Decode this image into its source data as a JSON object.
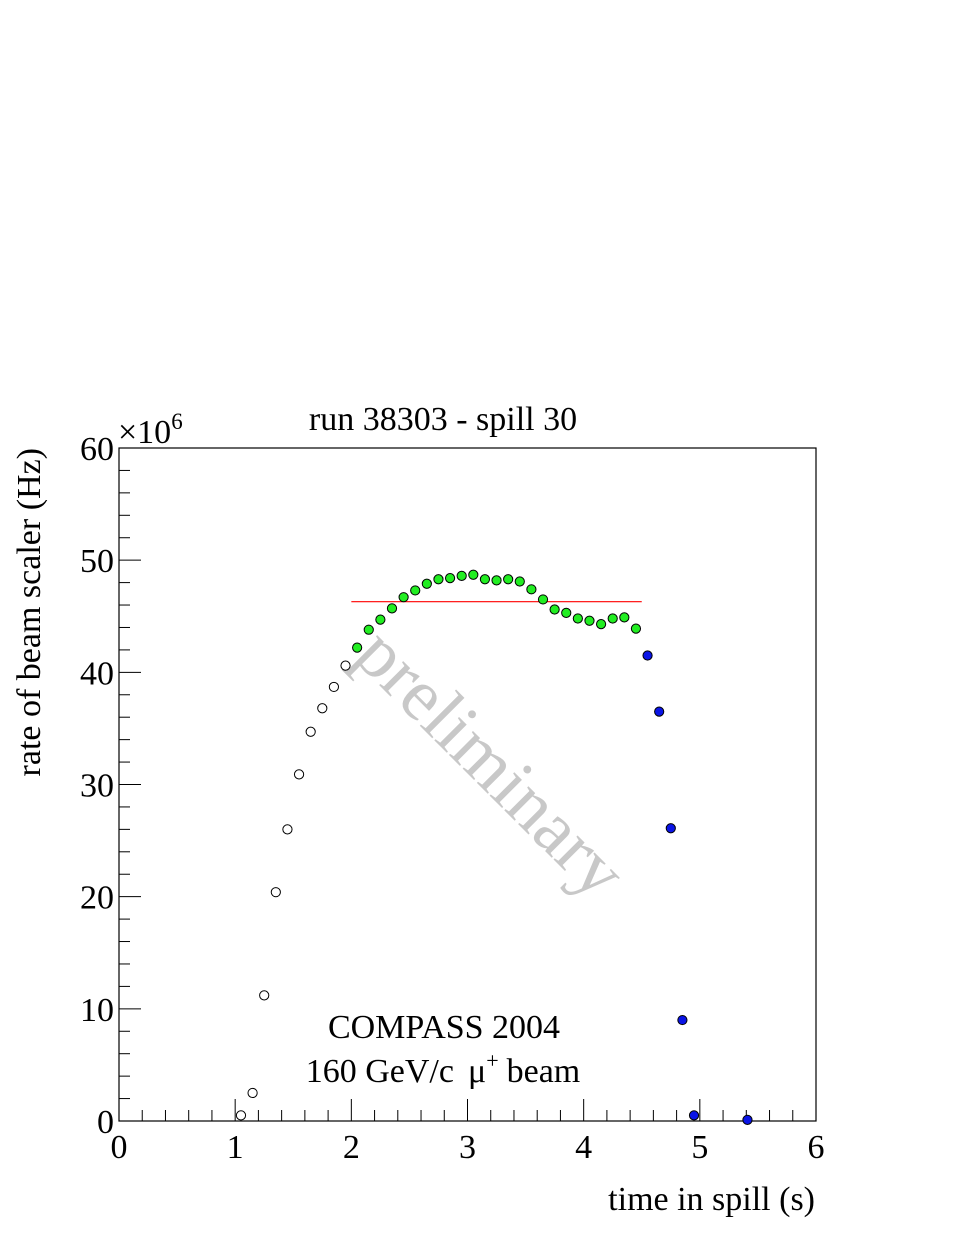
{
  "chart_data": {
    "type": "scatter",
    "title": "run 38303 - spill 30",
    "xlabel": "time in spill (s)",
    "ylabel": "rate of beam scaler (Hz)",
    "y_multiplier": "×10",
    "y_multiplier_exp": "6",
    "xlim": [
      0,
      6
    ],
    "ylim": [
      0,
      60
    ],
    "x_ticks": [
      "0",
      "1",
      "2",
      "3",
      "4",
      "5",
      "6"
    ],
    "y_ticks": [
      "0",
      "10",
      "20",
      "30",
      "40",
      "50",
      "60"
    ],
    "annotations": {
      "line1": "COMPASS 2004",
      "line2_a": "160 GeV/c",
      "line2_mu": "μ",
      "line2_sup": "+",
      "line2_b": "beam",
      "watermark": "preliminary"
    },
    "colors": {
      "ramp_fill": "#ffffff",
      "flat_fill": "#22ee22",
      "tail_fill": "#0a14e6",
      "mean_line": "#ff0000",
      "watermark": "#c8c8c8"
    },
    "mean_line": {
      "x_start": 2.0,
      "x_end": 4.5,
      "y": 46.3
    },
    "series": [
      {
        "style": "ramp",
        "x": [
          1.05,
          1.15,
          1.25,
          1.35,
          1.45,
          1.55,
          1.65,
          1.75,
          1.85,
          1.95
        ],
        "y": [
          0.5,
          2.5,
          11.2,
          20.4,
          26.0,
          30.9,
          34.7,
          36.8,
          38.7,
          40.6
        ]
      },
      {
        "style": "flat",
        "x": [
          2.05,
          2.15,
          2.25,
          2.35,
          2.45,
          2.55,
          2.65,
          2.75,
          2.85,
          2.95,
          3.05,
          3.15,
          3.25,
          3.35,
          3.45,
          3.55,
          3.65,
          3.75,
          3.85,
          3.95,
          4.05,
          4.15,
          4.25,
          4.35,
          4.45
        ],
        "y": [
          42.2,
          43.8,
          44.7,
          45.7,
          46.7,
          47.3,
          47.9,
          48.3,
          48.4,
          48.6,
          48.7,
          48.3,
          48.2,
          48.3,
          48.1,
          47.4,
          46.5,
          45.6,
          45.3,
          44.8,
          44.6,
          44.3,
          44.8,
          44.9,
          43.9
        ]
      },
      {
        "style": "tail",
        "x": [
          4.55,
          4.65,
          4.75,
          4.85,
          4.95,
          5.41
        ],
        "y": [
          41.5,
          36.5,
          26.1,
          9.0,
          0.5,
          0.1
        ]
      }
    ]
  }
}
